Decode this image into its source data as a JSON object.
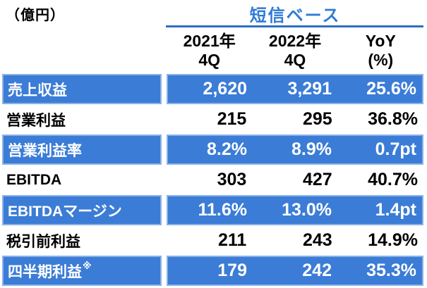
{
  "unit_label": "（億円）",
  "table": {
    "group_header": "短信ベース",
    "columns": [
      {
        "line1": "2021年",
        "line2": "4Q"
      },
      {
        "line1": "2022年",
        "line2": "4Q"
      },
      {
        "line1": "YoY",
        "line2": "(%)"
      }
    ],
    "rows": [
      {
        "label": "売上収益",
        "sup": "",
        "highlight": true,
        "values": [
          "2,620",
          "3,291",
          "25.6%"
        ]
      },
      {
        "label": "営業利益",
        "sup": "",
        "highlight": false,
        "values": [
          "215",
          "295",
          "36.8%"
        ]
      },
      {
        "label": "営業利益率",
        "sup": "",
        "highlight": true,
        "values": [
          "8.2%",
          "8.9%",
          "0.7pt"
        ]
      },
      {
        "label": "EBITDA",
        "sup": "",
        "highlight": false,
        "values": [
          "303",
          "427",
          "40.7%"
        ]
      },
      {
        "label": "EBITDAマージン",
        "sup": "",
        "highlight": true,
        "values": [
          "11.6%",
          "13.0%",
          "1.4pt"
        ]
      },
      {
        "label": "税引前利益",
        "sup": "",
        "highlight": false,
        "values": [
          "211",
          "243",
          "14.9%"
        ]
      },
      {
        "label": "四半期利益",
        "sup": "※",
        "highlight": true,
        "values": [
          "179",
          "242",
          "35.3%"
        ]
      }
    ]
  },
  "chart_data": {
    "type": "table",
    "title": "短信ベース",
    "unit": "億円",
    "columns": [
      "2021年4Q",
      "2022年4Q",
      "YoY(%)"
    ],
    "rows": [
      {
        "label": "売上収益",
        "values": [
          2620,
          3291
        ],
        "yoy": "25.6%"
      },
      {
        "label": "営業利益",
        "values": [
          215,
          295
        ],
        "yoy": "36.8%"
      },
      {
        "label": "営業利益率",
        "values": [
          "8.2%",
          "8.9%"
        ],
        "yoy": "0.7pt"
      },
      {
        "label": "EBITDA",
        "values": [
          303,
          427
        ],
        "yoy": "40.7%"
      },
      {
        "label": "EBITDAマージン",
        "values": [
          "11.6%",
          "13.0%"
        ],
        "yoy": "1.4pt"
      },
      {
        "label": "税引前利益",
        "values": [
          211,
          243
        ],
        "yoy": "14.9%"
      },
      {
        "label": "四半期利益※",
        "values": [
          179,
          242
        ],
        "yoy": "35.3%"
      }
    ]
  },
  "colors": {
    "row_blue": "#3b7cd6",
    "row_border": "#8cb2e8",
    "title_blue": "#2e7ad6",
    "underline_blue": "#2e6fc4",
    "background": "#ffffff"
  }
}
